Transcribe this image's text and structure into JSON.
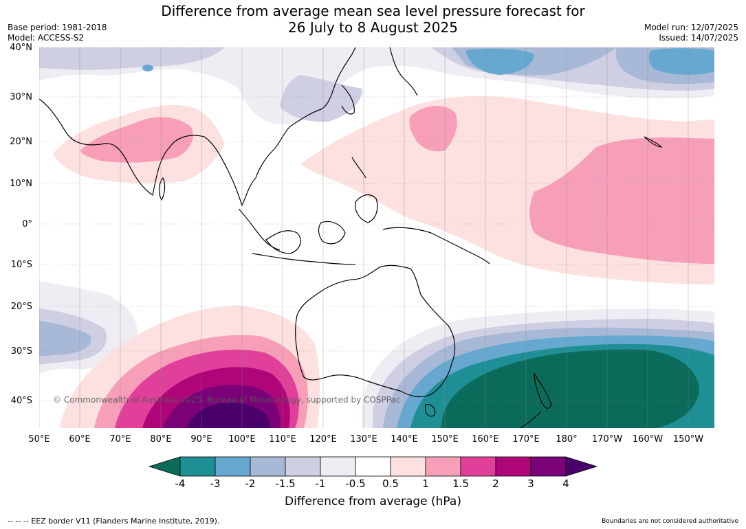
{
  "title_line1": "Difference from average mean sea level pressure forecast for",
  "title_line2": "26 July to 8 August 2025",
  "meta_left": {
    "base_period": "Base period: 1981-2018",
    "model": "Model: ACCESS-S2"
  },
  "meta_right": {
    "model_run": "Model run: 12/07/2025",
    "issued": "Issued: 14/07/2025"
  },
  "lat_labels": [
    "40°N",
    "30°N",
    "20°N",
    "10°N",
    "0°",
    "10°S",
    "20°S",
    "30°S",
    "40°S"
  ],
  "lon_labels": [
    "50°E",
    "60°E",
    "70°E",
    "80°E",
    "90°E",
    "100°E",
    "110°E",
    "120°E",
    "130°E",
    "140°E",
    "150°E",
    "160°E",
    "170°E",
    "180°",
    "170°W",
    "160°W",
    "150°W"
  ],
  "copyright": "© Commonwealth of Australia 2025, Bureau of Meteorology, supported by COSPPac",
  "colorbar": {
    "ticks": [
      "-4",
      "-3",
      "-2",
      "-1.5",
      "-1",
      "-0.5",
      "0.5",
      "1",
      "1.5",
      "2",
      "3",
      "4"
    ],
    "colors": [
      "#0a6b5b",
      "#1f8f96",
      "#66a8cf",
      "#a7b9d6",
      "#cfcfe3",
      "#efecf4",
      "#ffffff",
      "#fde0e0",
      "#f79fb8",
      "#e0409a",
      "#ae0579",
      "#7a0177",
      "#49006a"
    ],
    "label": "Difference from average (hPa)"
  },
  "footer_left": "--  --  -- EEZ border V11 (Flanders Marine Institute, 2019).",
  "footer_right": "Boundaries are not considered authoritative"
}
